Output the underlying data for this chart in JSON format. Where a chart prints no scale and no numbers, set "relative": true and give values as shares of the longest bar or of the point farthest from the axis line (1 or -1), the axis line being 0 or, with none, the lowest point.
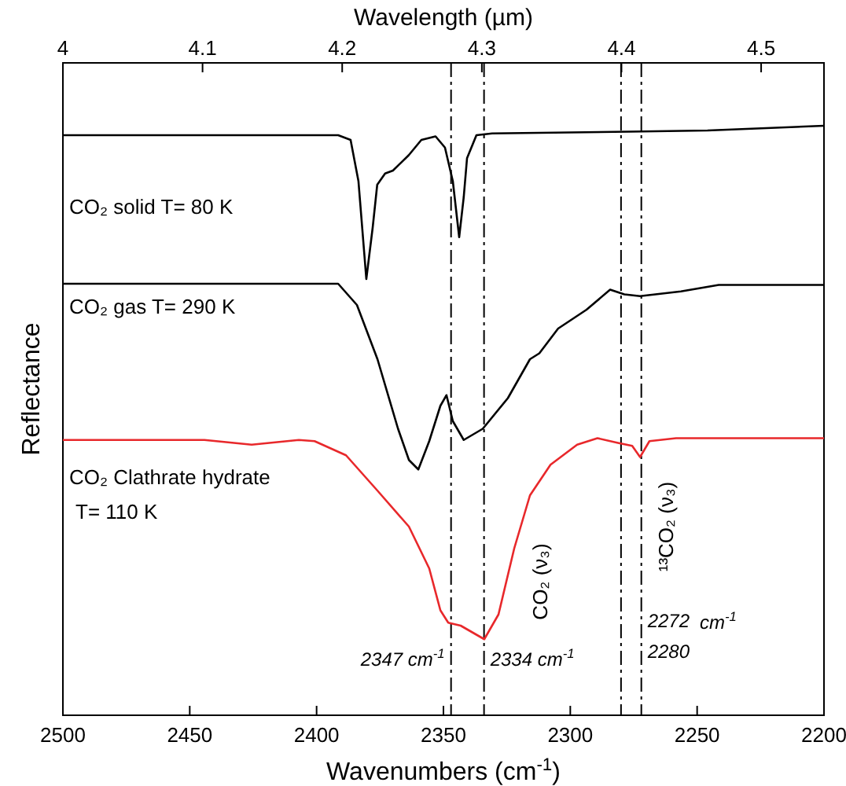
{
  "chart_data": {
    "type": "line",
    "relative": true,
    "xlabel": "Wavenumbers (cm$^{-1}$)",
    "ylabel": "Reflectance",
    "x2label": "Wavelength (µm)",
    "xlim": [
      2500,
      2200
    ],
    "xticks": [
      2500,
      2450,
      2400,
      2350,
      2300,
      2250,
      2200
    ],
    "x2lim": [
      4,
      4.545
    ],
    "x2ticks": [
      4,
      4.1,
      4.2,
      4.3,
      4.4,
      4.5
    ],
    "grid": false,
    "legend": false,
    "marker": "none",
    "line_style": "solid",
    "series": [
      {
        "name": "CO₂ solid T= 80 K",
        "color": "#000000",
        "x": [
          2500,
          2431.8,
          2391.5,
          2386.6,
          2383.5,
          2380.4,
          2377.9,
          2376.1,
          2373.0,
          2369.9,
          2363.7,
          2358.7,
          2353.1,
          2349.4,
          2346.3,
          2343.8,
          2342.0,
          2340.7,
          2337.0,
          2330.8,
          2276.9,
          2245.9,
          2200
        ],
        "values": [
          0.984,
          0.984,
          0.984,
          0.976,
          0.906,
          0.74,
          0.827,
          0.9,
          0.919,
          0.924,
          0.95,
          0.976,
          0.982,
          0.963,
          0.906,
          0.811,
          0.879,
          0.945,
          0.984,
          0.987,
          0.99,
          0.992,
          1
        ]
      },
      {
        "name": "CO₂ gas T= 290 K",
        "color": "#000000",
        "x": [
          2500,
          2391.5,
          2384.1,
          2376.0,
          2367.9,
          2363.6,
          2359.9,
          2355.6,
          2351.2,
          2348.8,
          2346.3,
          2342.0,
          2334.5,
          2324.6,
          2315.9,
          2312.2,
          2304.8,
          2293.6,
          2284.3,
          2278.7,
          2272.5,
          2256.4,
          2241.5,
          2200
        ],
        "values": [
          0.732,
          0.732,
          0.696,
          0.604,
          0.486,
          0.433,
          0.417,
          0.465,
          0.525,
          0.543,
          0.499,
          0.467,
          0.486,
          0.538,
          0.604,
          0.614,
          0.656,
          0.688,
          0.722,
          0.714,
          0.711,
          0.719,
          0.73,
          0.73
        ]
      },
      {
        "name": "CO₂ Clathrate hydrate T= 110 K",
        "color": "#e8282b",
        "x": [
          2500,
          2444.2,
          2425.6,
          2407.0,
          2400.8,
          2388.4,
          2376.0,
          2363.6,
          2355.6,
          2351.2,
          2348.1,
          2343.2,
          2333.9,
          2328.3,
          2322.1,
          2315.9,
          2307.8,
          2297.3,
          2289.3,
          2281.2,
          2275.6,
          2272.5,
          2268.8,
          2258.3,
          2200
        ],
        "values": [
          0.467,
          0.467,
          0.459,
          0.467,
          0.465,
          0.441,
          0.381,
          0.32,
          0.249,
          0.178,
          0.157,
          0.152,
          0.129,
          0.171,
          0.283,
          0.373,
          0.425,
          0.459,
          0.47,
          0.462,
          0.457,
          0.438,
          0.465,
          0.47,
          0.47
        ]
      }
    ],
    "ref_lines": [
      {
        "axis": "x",
        "value": 2347,
        "color": "#000000",
        "line_style": "dashed"
      },
      {
        "axis": "x",
        "value": 2334,
        "color": "#000000",
        "line_style": "dashed"
      },
      {
        "axis": "x",
        "value": 2280,
        "color": "#000000",
        "line_style": "dashed"
      },
      {
        "axis": "x",
        "value": 2272,
        "color": "#000000",
        "line_style": "dashed"
      }
    ],
    "annotations": [
      {
        "text": "2347 cm$^{-1}$",
        "x": 2347,
        "y": 0.084
      },
      {
        "text": "2334 cm$^{-1}$",
        "x": 2334,
        "y": 0.084
      },
      {
        "text": "2272",
        "x": 2272,
        "y": 0.15
      },
      {
        "text": "2280",
        "x": 2272,
        "y": 0.097
      },
      "cm$^{-1}$",
      "CO₂ (ν₃)",
      "¹³CO₂ (ν₃)"
    ]
  }
}
